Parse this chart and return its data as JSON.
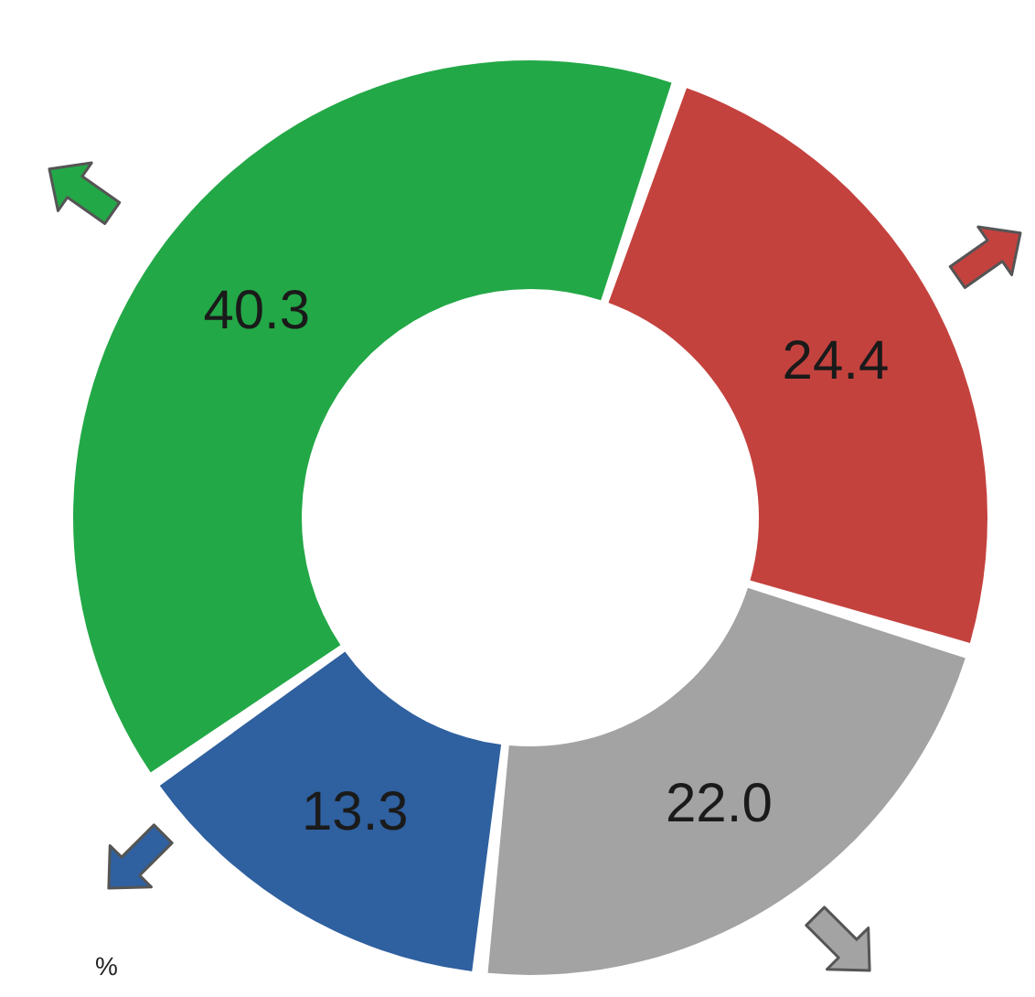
{
  "chart_data": {
    "type": "donut",
    "categories": [
      null,
      null,
      null,
      null
    ],
    "values": [
      24.4,
      22.0,
      13.3,
      40.3
    ],
    "colors": [
      "#c4423e",
      "#a3a3a3",
      "#2f609f",
      "#23a847"
    ],
    "value_labels": [
      "24.4",
      "22.0",
      "13.3",
      "40.3"
    ],
    "annotations": [
      "%"
    ]
  }
}
